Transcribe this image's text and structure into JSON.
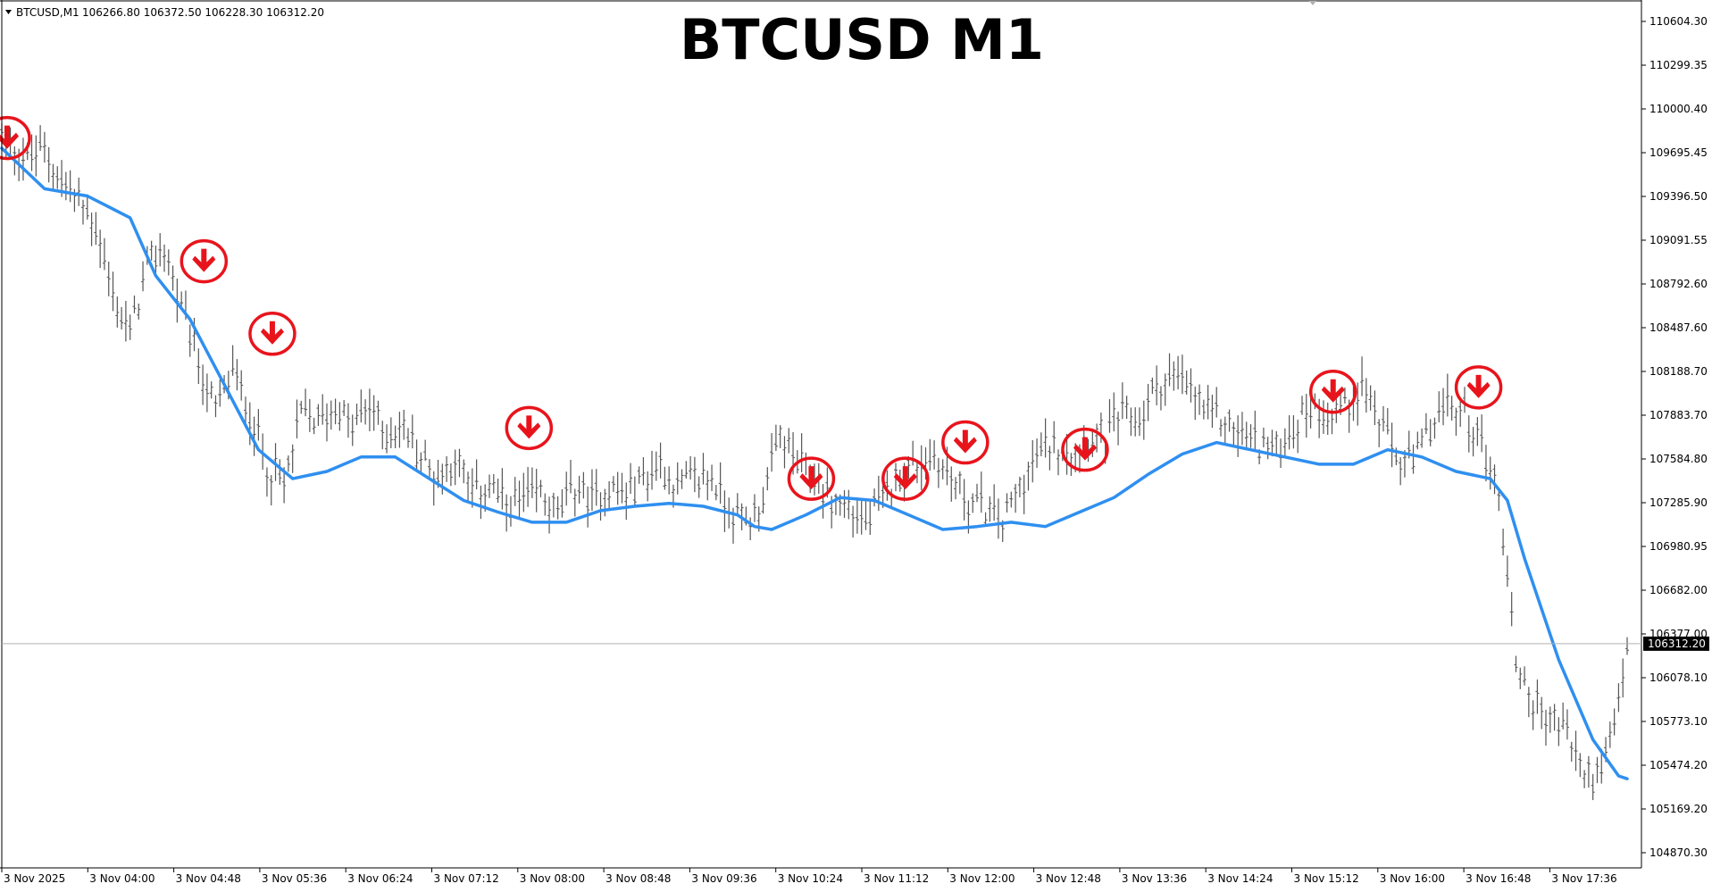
{
  "header": {
    "symbol": "BTCUSD,M1",
    "ohlc": "106266.80 106372.50 106228.30 106312.20"
  },
  "chart_data": {
    "type": "candlestick",
    "title": "BTCUSD M1",
    "x_ticks": [
      "3 Nov 2025",
      "3 Nov 04:00",
      "3 Nov 04:48",
      "3 Nov 05:36",
      "3 Nov 06:24",
      "3 Nov 07:12",
      "3 Nov 08:00",
      "3 Nov 08:48",
      "3 Nov 09:36",
      "3 Nov 10:24",
      "3 Nov 11:12",
      "3 Nov 12:00",
      "3 Nov 12:48",
      "3 Nov 13:36",
      "3 Nov 14:24",
      "3 Nov 15:12",
      "3 Nov 16:00",
      "3 Nov 16:48",
      "3 Nov 17:36"
    ],
    "y_ticks": [
      "110604.30",
      "110299.35",
      "110000.40",
      "109695.45",
      "109396.50",
      "109091.55",
      "108792.60",
      "108487.60",
      "108188.70",
      "107883.70",
      "107584.80",
      "107285.90",
      "106980.95",
      "106682.00",
      "106377.00",
      "106078.10",
      "105773.10",
      "105474.20",
      "105169.20",
      "104870.30"
    ],
    "ylim": [
      104870.3,
      110604.3
    ],
    "current_price": 106312.2,
    "current_price_label": "106312.20",
    "price_path": [
      [
        0,
        109800
      ],
      [
        3,
        109650
      ],
      [
        5,
        109720
      ],
      [
        7,
        109500
      ],
      [
        9,
        109350
      ],
      [
        11,
        109200
      ],
      [
        13,
        108700
      ],
      [
        15,
        108450
      ],
      [
        17,
        108900
      ],
      [
        19,
        109050
      ],
      [
        21,
        108600
      ],
      [
        23,
        108250
      ],
      [
        25,
        107900
      ],
      [
        27,
        108200
      ],
      [
        29,
        107900
      ],
      [
        31,
        107550
      ],
      [
        33,
        107400
      ],
      [
        35,
        107900
      ],
      [
        37,
        107850
      ],
      [
        39,
        107950
      ],
      [
        41,
        107800
      ],
      [
        43,
        107950
      ],
      [
        45,
        107750
      ],
      [
        47,
        107800
      ],
      [
        49,
        107600
      ],
      [
        51,
        107450
      ],
      [
        53,
        107600
      ],
      [
        55,
        107350
      ],
      [
        57,
        107400
      ],
      [
        59,
        107250
      ],
      [
        61,
        107300
      ],
      [
        63,
        107350
      ],
      [
        65,
        107200
      ],
      [
        67,
        107400
      ],
      [
        69,
        107300
      ],
      [
        71,
        107400
      ],
      [
        73,
        107350
      ],
      [
        75,
        107450
      ],
      [
        77,
        107550
      ],
      [
        79,
        107400
      ],
      [
        81,
        107450
      ],
      [
        83,
        107450
      ],
      [
        85,
        107250
      ],
      [
        87,
        107150
      ],
      [
        89,
        107300
      ],
      [
        91,
        107750
      ],
      [
        93,
        107550
      ],
      [
        95,
        107450
      ],
      [
        97,
        107300
      ],
      [
        99,
        107250
      ],
      [
        101,
        107150
      ],
      [
        103,
        107300
      ],
      [
        105,
        107500
      ],
      [
        107,
        107550
      ],
      [
        109,
        107600
      ],
      [
        111,
        107450
      ],
      [
        113,
        107300
      ],
      [
        115,
        107250
      ],
      [
        117,
        107150
      ],
      [
        119,
        107400
      ],
      [
        121,
        107600
      ],
      [
        123,
        107700
      ],
      [
        125,
        107650
      ],
      [
        127,
        107750
      ],
      [
        129,
        107750
      ],
      [
        131,
        107900
      ],
      [
        133,
        107850
      ],
      [
        135,
        108100
      ],
      [
        137,
        108150
      ],
      [
        139,
        108050
      ],
      [
        141,
        107900
      ],
      [
        143,
        107850
      ],
      [
        145,
        107750
      ],
      [
        147,
        107700
      ],
      [
        149,
        107650
      ],
      [
        151,
        107800
      ],
      [
        153,
        107950
      ],
      [
        155,
        107900
      ],
      [
        157,
        107950
      ],
      [
        159,
        108100
      ],
      [
        161,
        107850
      ],
      [
        163,
        107600
      ],
      [
        165,
        107550
      ],
      [
        167,
        107800
      ],
      [
        169,
        107950
      ],
      [
        171,
        107900
      ],
      [
        173,
        107700
      ],
      [
        175,
        107350
      ],
      [
        177,
        106200
      ],
      [
        179,
        105900
      ],
      [
        181,
        105800
      ],
      [
        183,
        105700
      ],
      [
        185,
        105400
      ],
      [
        187,
        105400
      ],
      [
        189,
        105900
      ],
      [
        190,
        106300
      ]
    ],
    "ma_line": [
      [
        0,
        109730
      ],
      [
        5,
        109450
      ],
      [
        10,
        109400
      ],
      [
        15,
        109250
      ],
      [
        18,
        108850
      ],
      [
        22,
        108550
      ],
      [
        26,
        108100
      ],
      [
        30,
        107650
      ],
      [
        34,
        107450
      ],
      [
        38,
        107500
      ],
      [
        42,
        107600
      ],
      [
        46,
        107600
      ],
      [
        50,
        107450
      ],
      [
        54,
        107300
      ],
      [
        58,
        107220
      ],
      [
        62,
        107150
      ],
      [
        66,
        107150
      ],
      [
        70,
        107230
      ],
      [
        74,
        107260
      ],
      [
        78,
        107280
      ],
      [
        82,
        107260
      ],
      [
        86,
        107200
      ],
      [
        88,
        107120
      ],
      [
        90,
        107100
      ],
      [
        94,
        107200
      ],
      [
        98,
        107320
      ],
      [
        102,
        107300
      ],
      [
        106,
        107200
      ],
      [
        110,
        107100
      ],
      [
        114,
        107120
      ],
      [
        118,
        107150
      ],
      [
        122,
        107120
      ],
      [
        126,
        107220
      ],
      [
        130,
        107320
      ],
      [
        134,
        107480
      ],
      [
        138,
        107620
      ],
      [
        142,
        107700
      ],
      [
        146,
        107650
      ],
      [
        150,
        107600
      ],
      [
        154,
        107550
      ],
      [
        158,
        107550
      ],
      [
        162,
        107650
      ],
      [
        166,
        107600
      ],
      [
        170,
        107500
      ],
      [
        174,
        107450
      ],
      [
        176,
        107300
      ],
      [
        178,
        106900
      ],
      [
        182,
        106200
      ],
      [
        186,
        105650
      ],
      [
        189,
        105400
      ],
      [
        190,
        105380
      ]
    ],
    "sell_signals": [
      [
        0,
        109800
      ],
      [
        23,
        108950
      ],
      [
        31,
        108450
      ],
      [
        61,
        107800
      ],
      [
        94,
        107450
      ],
      [
        105,
        107450
      ],
      [
        112,
        107700
      ],
      [
        126,
        107650
      ],
      [
        155,
        108050
      ],
      [
        172,
        108080
      ]
    ]
  }
}
